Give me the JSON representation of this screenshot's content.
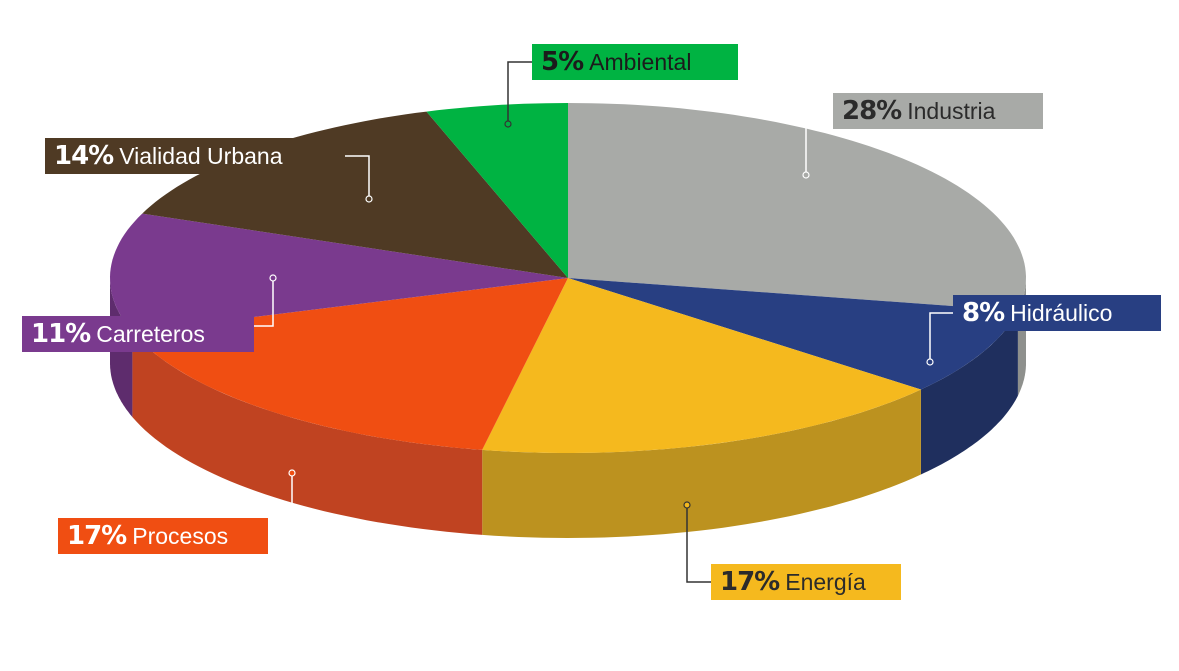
{
  "chart_data": {
    "type": "pie",
    "title": "",
    "slices": [
      {
        "name": "Industria",
        "value": 28,
        "pct_label": "28%",
        "color": "#a8aaa7",
        "side_color": "#8e908d",
        "label_bg": "#a8aaa7",
        "label_text_color": "#2b2b2b"
      },
      {
        "name": "Hidráulico",
        "value": 8,
        "pct_label": "8%",
        "color": "#283f82",
        "side_color": "#1f2f5e",
        "label_bg": "#283f82",
        "label_text_color": "#ffffff"
      },
      {
        "name": "Energía",
        "value": 17,
        "pct_label": "17%",
        "color": "#f5b91e",
        "side_color": "#bc921f",
        "label_bg": "#f5b91e",
        "label_text_color": "#2b2b2b"
      },
      {
        "name": "Procesos",
        "value": 17,
        "pct_label": "17%",
        "color": "#f04e12",
        "side_color": "#c04321",
        "label_bg": "#f04e12",
        "label_text_color": "#ffffff"
      },
      {
        "name": "Carreteros",
        "value": 11,
        "pct_label": "11%",
        "color": "#7a3a8e",
        "side_color": "#5e2c6d",
        "label_bg": "#7a3a8e",
        "label_text_color": "#ffffff"
      },
      {
        "name": "Vialidad Urbana",
        "value": 14,
        "pct_label": "14%",
        "color": "#4f3a24",
        "side_color": "#3a2a1a",
        "label_bg": "#4f3a24",
        "label_text_color": "#ffffff"
      },
      {
        "name": "Ambiental",
        "value": 5,
        "pct_label": "5%",
        "color": "#00b342",
        "side_color": "#00892f",
        "label_bg": "#00b342",
        "label_text_color": "#1b1b1b"
      }
    ],
    "legend": "callout labels around pie",
    "style": "3d tilted pie"
  }
}
